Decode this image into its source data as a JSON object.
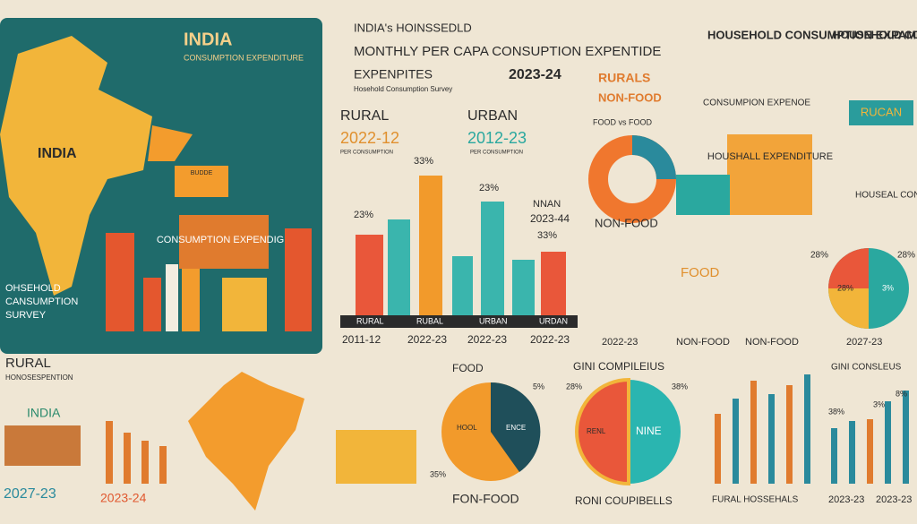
{
  "hero": {
    "title": "INDIA",
    "subtitle": "CONSUMPTION EXPENDITURE",
    "map_label": "INDIA",
    "sign": "CONSUMPTION EXPENDIGN",
    "survey_line1": "OHSEHOLD",
    "survey_line2": "CANSUMPTION",
    "survey_line3": "SURVEY",
    "truck_label": "BUDDE"
  },
  "header": {
    "line1": "INDIA's HOINSSEDLD",
    "line2": "MONTHLY PER CAPA CONSUPTION EXPENTIDE",
    "line3": "EXPENPITES",
    "year": "2023-24",
    "source": "Hosehold Consumption Survey",
    "tag1": "RURALS",
    "tag2": "NON-FOOD"
  },
  "comparison": {
    "rural": "RURAL",
    "rural_year": "2022-12",
    "urban": "URBAN",
    "urban_year": "2012-23",
    "note1": "PER CONSUMPTION",
    "note2": "PER CONSUMPTION",
    "pct1": "23%",
    "pct2": "33%",
    "pct3": "23%",
    "nnan": "NNAN",
    "nnan_year": "2023-44",
    "pct4": "33%",
    "bar_labels": [
      "RURAL",
      "RUBAL",
      "URBAN",
      "URDAN"
    ],
    "years": [
      "2011-12",
      "2022-23",
      "2022-23",
      "2022-23"
    ]
  },
  "donut": {
    "title": "FOOD vs FOOD",
    "label": "NON-FOOD"
  },
  "right": {
    "head1": "HOUSEHOLD CONSUMPTION EXPAMPENDE",
    "head2": "HOUSEHOLD COPEMPTION EXPENSTIONS",
    "band": "CONSUMPION EXPENOE",
    "sign": "RUCAN",
    "truck": "HOUSHALL EXPENDITURE",
    "side": "HOUSEAL CONSEPTION",
    "food": "FOOD",
    "year": "2022-23",
    "nonfood1": "NON-FOOD",
    "nonfood2": "NON-FOOD",
    "pie_pct1": "28%",
    "pie_pct2": "28%",
    "pie_in1": "28%",
    "pie_in2": "3%",
    "pie_year": "2027-23"
  },
  "bottom": {
    "rural": "RURAL",
    "rural_sub": "HONOSESPENTION",
    "rural_sign": "INDIA",
    "rural_year": "2027-23",
    "bars_year": "2023-24",
    "food": "FOOD",
    "food_pct": "5%",
    "food_pct2": "35%",
    "food_in1": "HOOL",
    "food_in2": "ENCE",
    "food_foot": "FON-FOOD",
    "gini": "GINI COMPILEIUS",
    "gini_pct1": "28%",
    "gini_pct2": "38%",
    "gini_in1": "RENL",
    "gini_in2": "NINE",
    "gini_foot": "RONI COUPIBELLS",
    "right_title": "GINI CONSLEUS",
    "right_foot": "FURAL HOSSEHALS",
    "right_y1": "2023-23",
    "right_y2": "2023-23",
    "right_p1": "38%",
    "right_p2": "3%",
    "right_p3": "8%"
  }
}
